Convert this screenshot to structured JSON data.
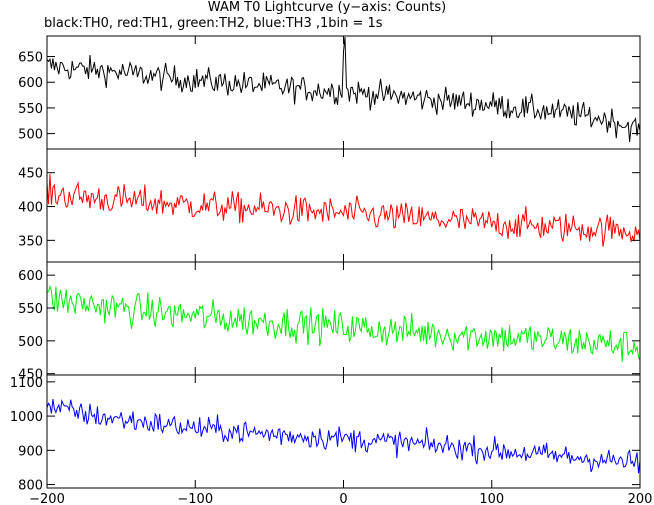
{
  "chart_data": {
    "type": "line",
    "title": "WAM T0 Lightcurve (y−axis: Counts)",
    "subtitle": "black:TH0, red:TH1, green:TH2, blue:TH3 ,1bin = 1s",
    "xlim": [
      -200,
      200
    ],
    "x_ticks": [
      -200,
      -100,
      0,
      100,
      200
    ],
    "x_tick_labels": [
      "−200",
      "−100",
      "0",
      "100",
      "200"
    ],
    "grid": false,
    "bin_seconds": 1,
    "panels": [
      {
        "name": "TH0",
        "color": "#000000",
        "ylim": [
          470,
          690
        ],
        "y_ticks": [
          500,
          550,
          600,
          650
        ],
        "x": [
          -200,
          -180,
          -160,
          -140,
          -120,
          -100,
          -80,
          -60,
          -40,
          -20,
          0,
          20,
          40,
          60,
          80,
          100,
          120,
          140,
          160,
          180,
          200
        ],
        "mean": [
          632,
          626,
          622,
          616,
          609,
          604,
          599,
          594,
          590,
          585,
          583,
          577,
          572,
          566,
          562,
          556,
          549,
          543,
          536,
          526,
          508
        ],
        "noise": 18,
        "spikes": [
          {
            "x": 1,
            "y": 688
          },
          {
            "x": 0,
            "y": 660
          }
        ]
      },
      {
        "name": "TH1",
        "color": "#ff0000",
        "ylim": [
          318,
          485
        ],
        "y_ticks": [
          350,
          400,
          450
        ],
        "x": [
          -200,
          -180,
          -160,
          -140,
          -120,
          -100,
          -80,
          -60,
          -40,
          -20,
          0,
          20,
          40,
          60,
          80,
          100,
          120,
          140,
          160,
          180,
          200
        ],
        "mean": [
          420,
          415,
          411,
          408,
          405,
          402,
          399,
          397,
          394,
          392,
          390,
          387,
          384,
          381,
          378,
          375,
          373,
          370,
          368,
          366,
          364
        ],
        "noise": 16,
        "spikes": []
      },
      {
        "name": "TH2",
        "color": "#00ee00",
        "ylim": [
          448,
          620
        ],
        "y_ticks": [
          450,
          500,
          550,
          600
        ],
        "x": [
          -200,
          -180,
          -160,
          -140,
          -120,
          -100,
          -80,
          -60,
          -40,
          -20,
          0,
          20,
          40,
          60,
          80,
          100,
          120,
          140,
          160,
          180,
          200
        ],
        "mean": [
          565,
          558,
          552,
          547,
          542,
          538,
          534,
          530,
          527,
          524,
          521,
          518,
          515,
          512,
          509,
          507,
          504,
          501,
          498,
          495,
          490
        ],
        "noise": 18,
        "spikes": []
      },
      {
        "name": "TH3",
        "color": "#0000ff",
        "ylim": [
          790,
          1120
        ],
        "y_ticks": [
          800,
          900,
          1000,
          1100
        ],
        "x": [
          -200,
          -180,
          -160,
          -140,
          -120,
          -100,
          -80,
          -60,
          -40,
          -20,
          0,
          20,
          40,
          60,
          80,
          100,
          120,
          140,
          160,
          180,
          200
        ],
        "mean": [
          1030,
          1010,
          995,
          985,
          975,
          965,
          958,
          950,
          945,
          940,
          935,
          928,
          922,
          915,
          908,
          900,
          893,
          885,
          878,
          870,
          862
        ],
        "noise": 25,
        "spikes": []
      }
    ]
  }
}
